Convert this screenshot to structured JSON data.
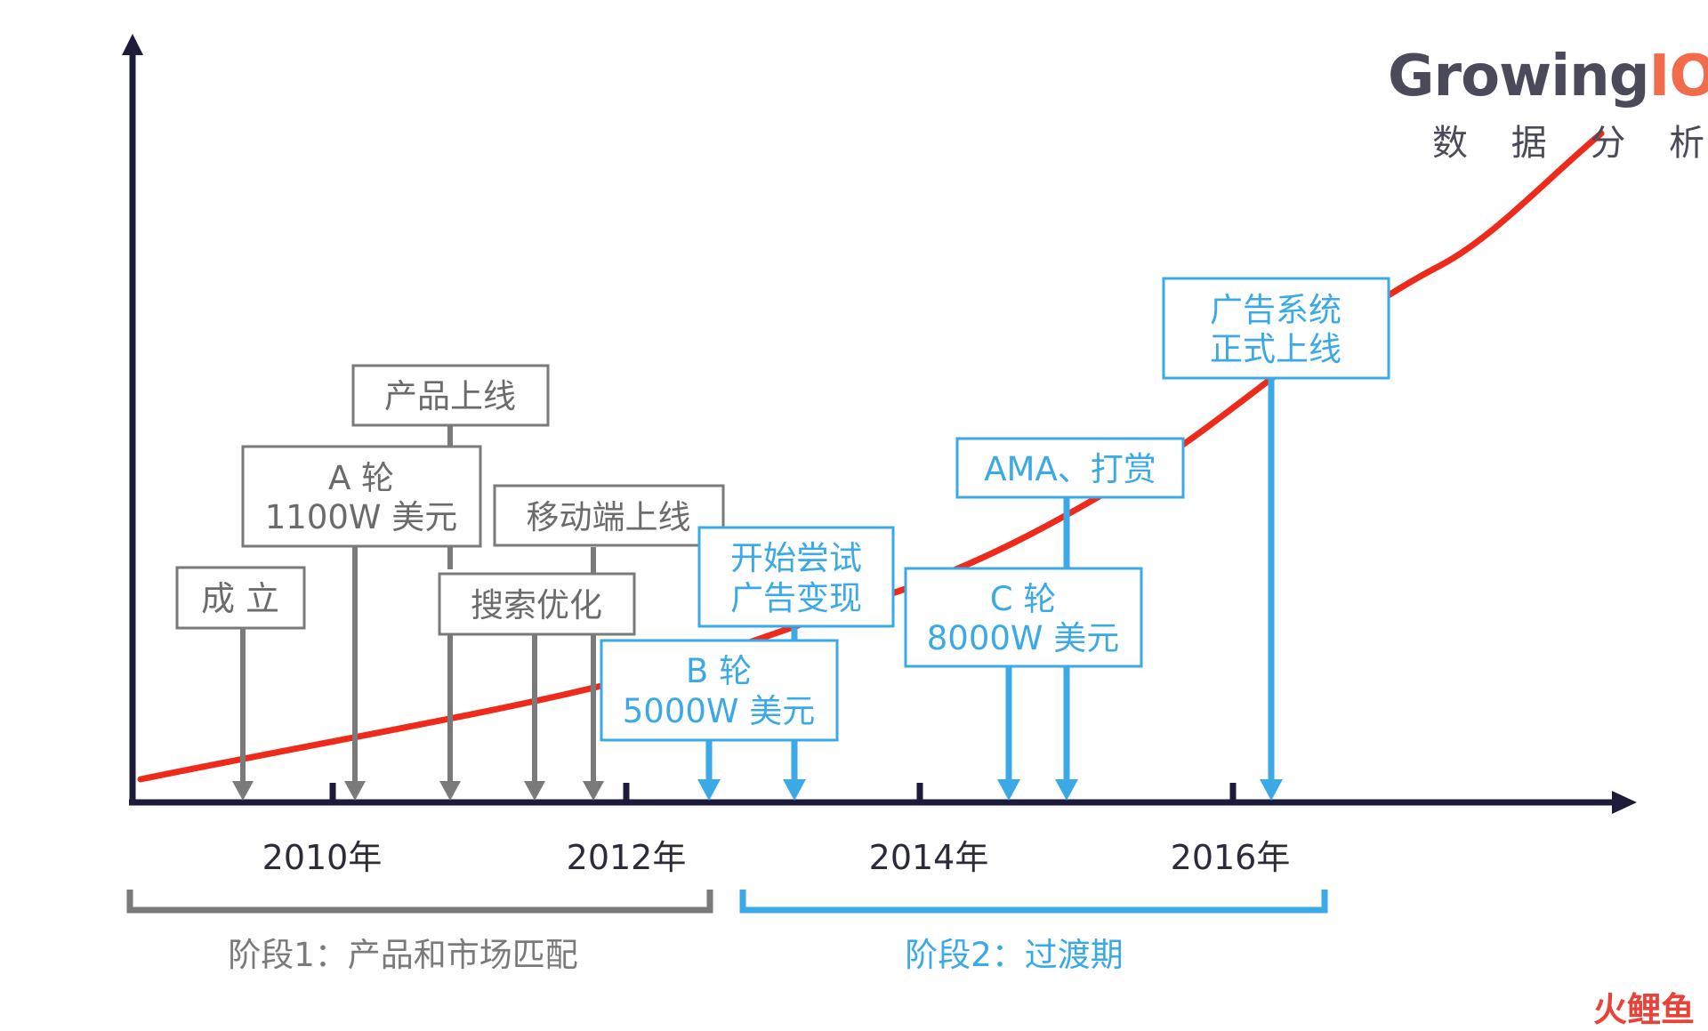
{
  "logo": {
    "brand_prefix": "Growing",
    "brand_suffix": "IO",
    "subtitle": "数 据 分 析",
    "brand_color": "#4a4a5a",
    "accent_color": "#f26b4b"
  },
  "watermark": {
    "text": "火鲤鱼",
    "color": "#e8433a"
  },
  "axis": {
    "years": [
      "2010年",
      "2012年",
      "2014年",
      "2016年"
    ]
  },
  "events": [
    {
      "lines": [
        "成 立"
      ],
      "phase": 1
    },
    {
      "lines": [
        "A 轮",
        "1100W 美元"
      ],
      "phase": 1
    },
    {
      "lines": [
        "产品上线"
      ],
      "phase": 1
    },
    {
      "lines": [
        "移动端上线"
      ],
      "phase": 1
    },
    {
      "lines": [
        "搜索优化"
      ],
      "phase": 1
    },
    {
      "lines": [
        "开始尝试",
        "广告变现"
      ],
      "phase": 2
    },
    {
      "lines": [
        "B 轮",
        "5000W 美元"
      ],
      "phase": 2
    },
    {
      "lines": [
        "AMA、打赏"
      ],
      "phase": 2
    },
    {
      "lines": [
        "C 轮",
        "8000W 美元"
      ],
      "phase": 2
    },
    {
      "lines": [
        "广告系统",
        "正式上线"
      ],
      "phase": 2
    }
  ],
  "phases": [
    {
      "label": "阶段1：产品和市场匹配",
      "color": "#7a7a7a"
    },
    {
      "label": "阶段2：过渡期",
      "color": "#3aa9e6"
    }
  ],
  "colors": {
    "axis": "#1c1c3a",
    "curve": "#ee2a1b",
    "phase1": "#7a7a7a",
    "phase2": "#3aa9e6"
  }
}
